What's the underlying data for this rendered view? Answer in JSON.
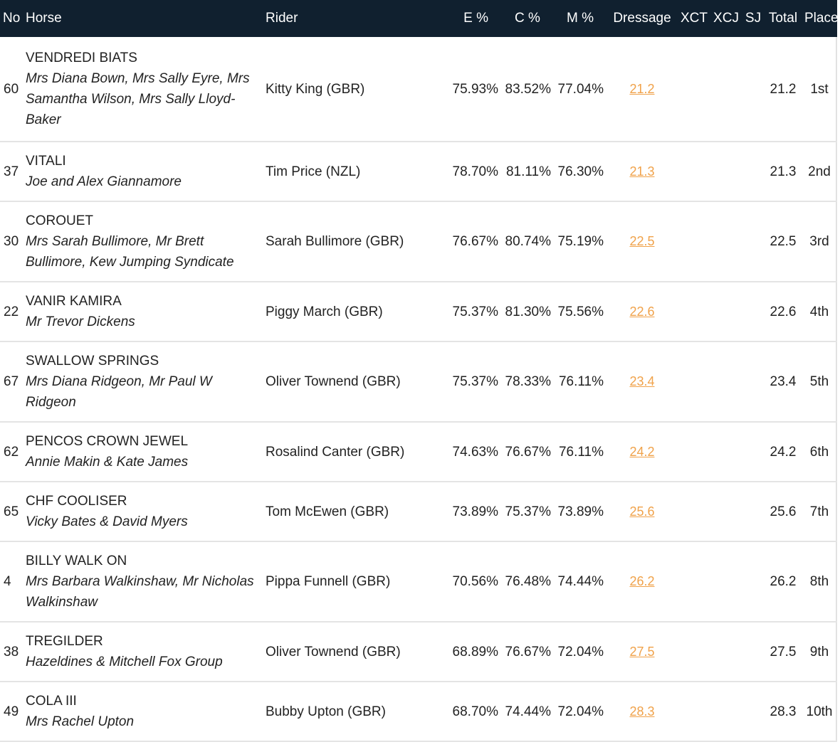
{
  "headers": {
    "no": "No",
    "horse": "Horse",
    "rider": "Rider",
    "e": "E %",
    "c": "C %",
    "m": "M %",
    "dressage": "Dressage",
    "xct": "XCT",
    "xcj": "XCJ",
    "sj": "SJ",
    "total": "Total",
    "place": "Place"
  },
  "rows": [
    {
      "no": "60",
      "horse": "VENDREDI BIATS",
      "owner": "Mrs Diana Bown, Mrs Sally Eyre, Mrs Samantha Wilson, Mrs Sally Lloyd-Baker",
      "rider": "Kitty King (GBR)",
      "e": "75.93%",
      "c": "83.52%",
      "m": "77.04%",
      "dressage": "21.2",
      "xct": "",
      "xcj": "",
      "sj": "",
      "total": "21.2",
      "place": "1st"
    },
    {
      "no": "37",
      "horse": "VITALI",
      "owner": "Joe and Alex Giannamore",
      "rider": "Tim Price (NZL)",
      "e": "78.70%",
      "c": "81.11%",
      "m": "76.30%",
      "dressage": "21.3",
      "xct": "",
      "xcj": "",
      "sj": "",
      "total": "21.3",
      "place": "2nd"
    },
    {
      "no": "30",
      "horse": "COROUET",
      "owner": "Mrs Sarah Bullimore, Mr Brett Bullimore, Kew Jumping Syndicate",
      "rider": "Sarah Bullimore (GBR)",
      "e": "76.67%",
      "c": "80.74%",
      "m": "75.19%",
      "dressage": "22.5",
      "xct": "",
      "xcj": "",
      "sj": "",
      "total": "22.5",
      "place": "3rd"
    },
    {
      "no": "22",
      "horse": "VANIR KAMIRA",
      "owner": "Mr Trevor Dickens",
      "rider": "Piggy March (GBR)",
      "e": "75.37%",
      "c": "81.30%",
      "m": "75.56%",
      "dressage": "22.6",
      "xct": "",
      "xcj": "",
      "sj": "",
      "total": "22.6",
      "place": "4th"
    },
    {
      "no": "67",
      "horse": "SWALLOW SPRINGS",
      "owner": "Mrs Diana Ridgeon, Mr Paul W Ridgeon",
      "rider": "Oliver Townend (GBR)",
      "e": "75.37%",
      "c": "78.33%",
      "m": "76.11%",
      "dressage": "23.4",
      "xct": "",
      "xcj": "",
      "sj": "",
      "total": "23.4",
      "place": "5th"
    },
    {
      "no": "62",
      "horse": "PENCOS CROWN JEWEL",
      "owner": "Annie Makin & Kate James",
      "rider": "Rosalind Canter (GBR)",
      "e": "74.63%",
      "c": "76.67%",
      "m": "76.11%",
      "dressage": "24.2",
      "xct": "",
      "xcj": "",
      "sj": "",
      "total": "24.2",
      "place": "6th"
    },
    {
      "no": "65",
      "horse": "CHF COOLISER",
      "owner": "Vicky Bates & David Myers",
      "rider": "Tom McEwen (GBR)",
      "e": "73.89%",
      "c": "75.37%",
      "m": "73.89%",
      "dressage": "25.6",
      "xct": "",
      "xcj": "",
      "sj": "",
      "total": "25.6",
      "place": "7th"
    },
    {
      "no": "4",
      "horse": "BILLY WALK ON",
      "owner": "Mrs Barbara Walkinshaw, Mr Nicholas Walkinshaw",
      "rider": "Pippa Funnell (GBR)",
      "e": "70.56%",
      "c": "76.48%",
      "m": "74.44%",
      "dressage": "26.2",
      "xct": "",
      "xcj": "",
      "sj": "",
      "total": "26.2",
      "place": "8th"
    },
    {
      "no": "38",
      "horse": "TREGILDER",
      "owner": "Hazeldines & Mitchell Fox Group",
      "rider": "Oliver Townend (GBR)",
      "e": "68.89%",
      "c": "76.67%",
      "m": "72.04%",
      "dressage": "27.5",
      "xct": "",
      "xcj": "",
      "sj": "",
      "total": "27.5",
      "place": "9th"
    },
    {
      "no": "49",
      "horse": "COLA III",
      "owner": "Mrs Rachel Upton",
      "rider": "Bubby Upton (GBR)",
      "e": "68.70%",
      "c": "74.44%",
      "m": "72.04%",
      "dressage": "28.3",
      "xct": "",
      "xcj": "",
      "sj": "",
      "total": "28.3",
      "place": "10th"
    }
  ]
}
